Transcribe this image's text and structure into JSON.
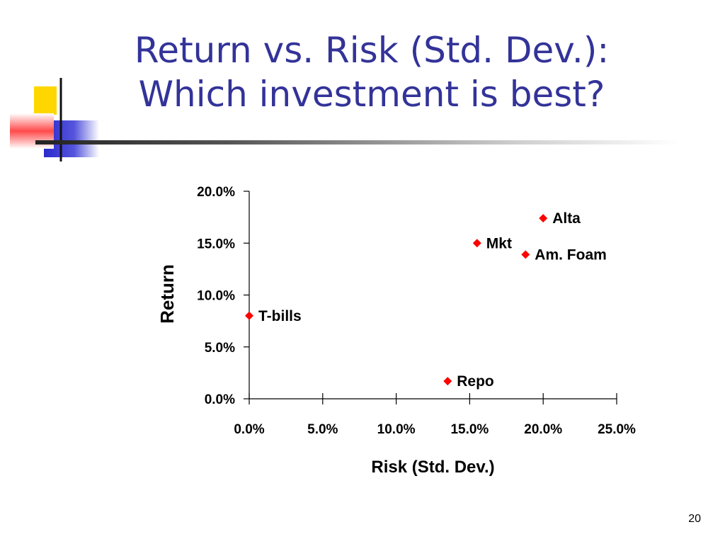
{
  "slide": {
    "title_line1": "Return vs. Risk (Std. Dev.):",
    "title_line2": "Which investment is best?",
    "page_number": "20"
  },
  "colors": {
    "title": "#333399",
    "marker": "#ff0000",
    "deco_yellow": "#ffd700",
    "deco_red": "#ff3333",
    "deco_blue": "#3333cc"
  },
  "chart_data": {
    "type": "scatter",
    "xlabel": "Risk (Std. Dev.)",
    "ylabel": "Return",
    "xlim": [
      0,
      25
    ],
    "ylim": [
      0,
      20
    ],
    "x_ticks": [
      "0.0%",
      "5.0%",
      "10.0%",
      "15.0%",
      "20.0%",
      "25.0%"
    ],
    "y_ticks": [
      "0.0%",
      "5.0%",
      "10.0%",
      "15.0%",
      "20.0%"
    ],
    "points": [
      {
        "label": "T-bills",
        "x": 0.0,
        "y": 8.0
      },
      {
        "label": "Repo",
        "x": 13.5,
        "y": 1.7
      },
      {
        "label": "Mkt",
        "x": 15.5,
        "y": 15.0
      },
      {
        "label": "Alta",
        "x": 20.0,
        "y": 17.4
      },
      {
        "label": "Am. Foam",
        "x": 18.8,
        "y": 13.9
      }
    ],
    "grid": false,
    "legend": "none"
  }
}
